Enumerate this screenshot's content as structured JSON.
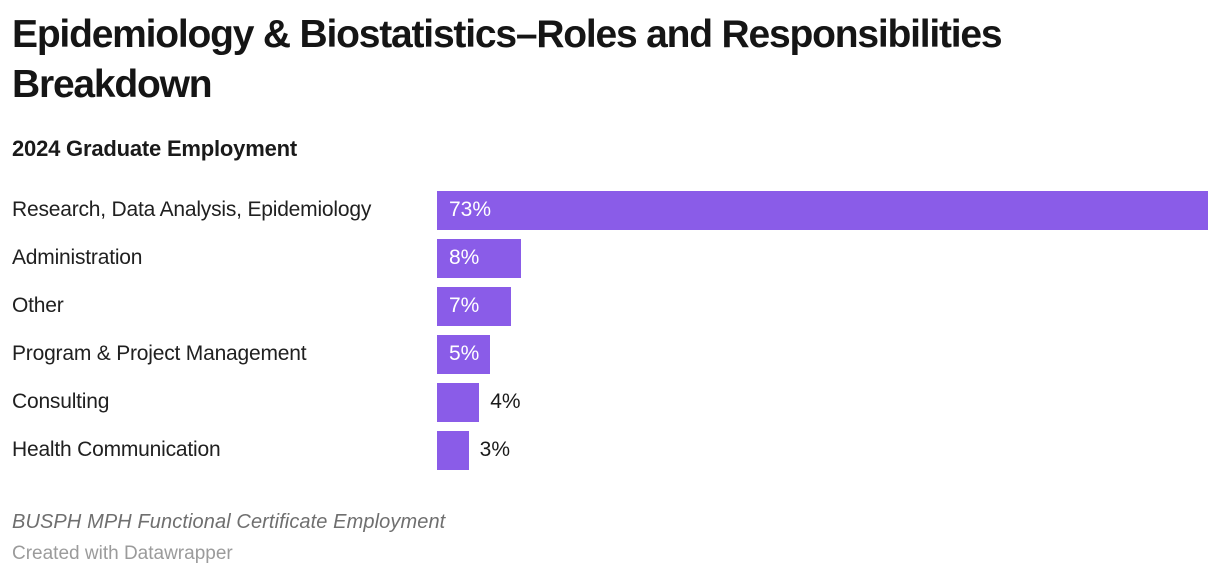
{
  "header": {
    "title": "Epidemiology & Biostatistics–Roles and Responsibilities Breakdown",
    "subtitle": "2024 Graduate Employment"
  },
  "chart_data": {
    "type": "bar",
    "orientation": "horizontal",
    "title": "Epidemiology & Biostatistics–Roles and Responsibilities Breakdown",
    "subtitle": "2024 Graduate Employment",
    "categories": [
      "Research, Data Analysis, Epidemiology",
      "Administration",
      "Other",
      "Program & Project Management",
      "Consulting",
      "Health Communication"
    ],
    "values": [
      73,
      8,
      7,
      5,
      4,
      3
    ],
    "value_labels": [
      "73%",
      "8%",
      "7%",
      "5%",
      "4%",
      "3%"
    ],
    "unit": "%",
    "xlim": [
      0,
      73
    ],
    "grid": false,
    "legend": false,
    "bar_color": "#8a5ce8",
    "inside_label_min_value": 5
  },
  "footer": {
    "source": "BUSPH MPH Functional Certificate Employment",
    "attribution": "Created with Datawrapper"
  },
  "colors": {
    "accent": "#8a5ce8",
    "title_text": "#151515",
    "label_text": "#202020",
    "value_inside_text": "#ffffff",
    "value_outside_text": "#1a1a1a",
    "source_text": "#6f6f6f",
    "attribution_text": "#9b9b9b",
    "background": "#ffffff"
  }
}
